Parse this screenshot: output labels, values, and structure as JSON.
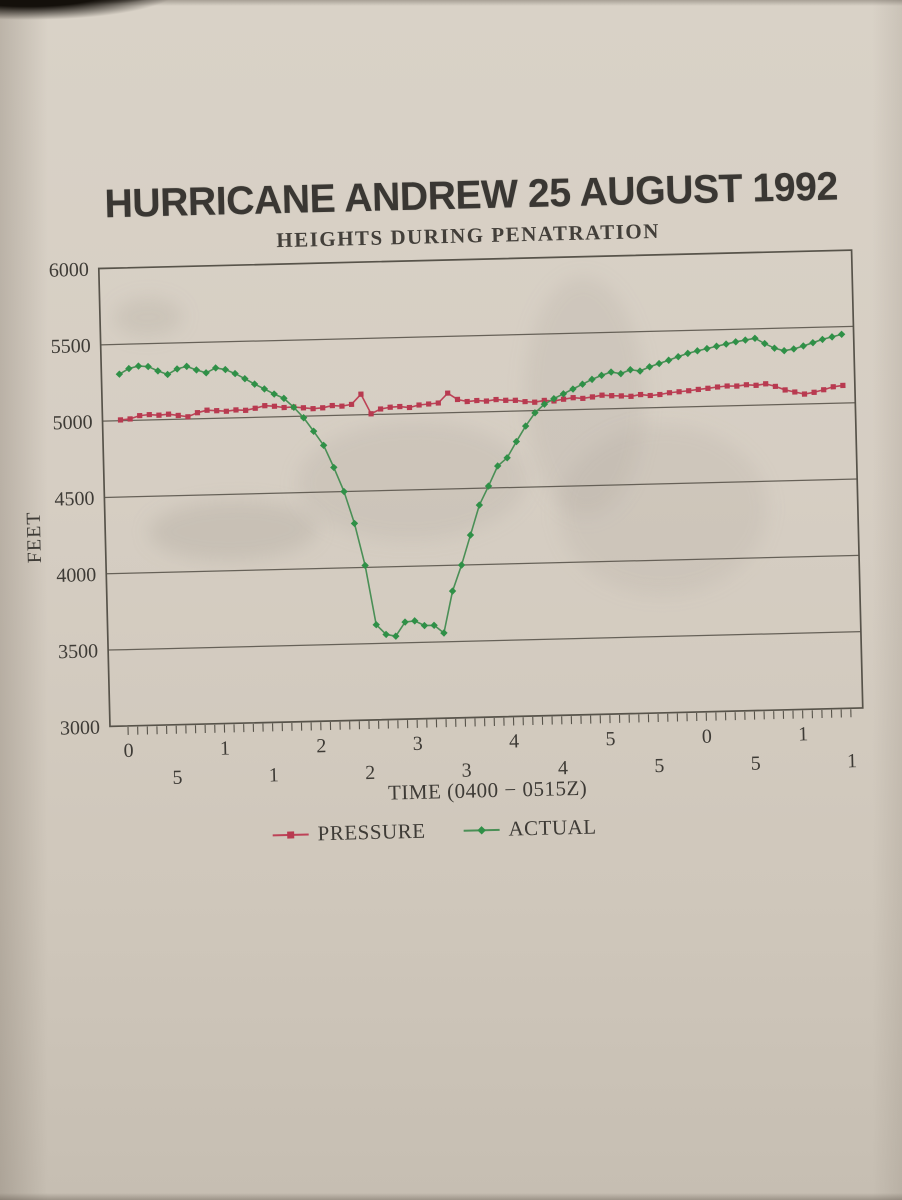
{
  "photo": {
    "background_paper_color": "#d5cdc2",
    "text_color": "#3e3b36",
    "gridline_color": "#5b564d"
  },
  "chart_data": {
    "type": "line",
    "title": "HURRICANE ANDREW 25 AUGUST 1992",
    "subtitle": "HEIGHTS DURING PENATRATION",
    "xlabel": "TIME (0400 − 0515Z)",
    "ylabel": "FEET",
    "ylim": [
      3000,
      6000
    ],
    "yticks": [
      6000,
      5500,
      5000,
      4500,
      4000,
      3500,
      3000
    ],
    "x_range_minutes": [
      0,
      75
    ],
    "minor_tick_every_minutes": 1,
    "xtick_minutes": [
      0,
      5,
      10,
      15,
      20,
      25,
      30,
      35,
      40,
      45,
      50,
      55,
      60,
      65,
      70,
      75
    ],
    "xtick_labels": [
      "0",
      "5",
      "1",
      "1",
      "2",
      "2",
      "3",
      "3",
      "4",
      "4",
      "5",
      "5",
      "0",
      "5",
      "1",
      "1"
    ],
    "xtick_label_rows": "staggered-alternating",
    "grid": "horizontal-only",
    "legend_position": "bottom",
    "series": [
      {
        "name": "PRESSURE",
        "color": "#bd4257",
        "marker_color": "#b83a50",
        "marker": "square",
        "values": [
          5005,
          5010,
          5030,
          5035,
          5030,
          5035,
          5025,
          5015,
          5040,
          5055,
          5050,
          5045,
          5052,
          5048,
          5060,
          5075,
          5070,
          5060,
          5062,
          5055,
          5048,
          5052,
          5065,
          5060,
          5070,
          5135,
          5005,
          5035,
          5045,
          5048,
          5040,
          5055,
          5060,
          5065,
          5128,
          5085,
          5070,
          5075,
          5070,
          5078,
          5072,
          5070,
          5060,
          5055,
          5065,
          5060,
          5070,
          5078,
          5072,
          5080,
          5090,
          5085,
          5082,
          5078,
          5088,
          5080,
          5085,
          5095,
          5100,
          5105,
          5112,
          5118,
          5125,
          5130,
          5128,
          5135,
          5130,
          5138,
          5120,
          5095,
          5080,
          5065,
          5075,
          5090,
          5108,
          5115
        ]
      },
      {
        "name": "ACTUAL",
        "color": "#4a8f56",
        "marker_color": "#2f9047",
        "marker": "diamond",
        "values": [
          5305,
          5340,
          5355,
          5350,
          5320,
          5295,
          5330,
          5345,
          5320,
          5300,
          5330,
          5318,
          5290,
          5255,
          5218,
          5185,
          5150,
          5120,
          5060,
          4990,
          4900,
          4806,
          4660,
          4500,
          4290,
          4013,
          3623,
          3558,
          3545,
          3636,
          3642,
          3610,
          3610,
          3558,
          3831,
          4000,
          4195,
          4390,
          4513,
          4643,
          4695,
          4800,
          4900,
          4985,
          5040,
          5075,
          5105,
          5135,
          5165,
          5195,
          5220,
          5240,
          5228,
          5252,
          5242,
          5268,
          5288,
          5308,
          5330,
          5350,
          5365,
          5378,
          5392,
          5405,
          5418,
          5428,
          5438,
          5402,
          5370,
          5352,
          5362,
          5380,
          5400,
          5420,
          5435,
          5450
        ]
      }
    ]
  }
}
